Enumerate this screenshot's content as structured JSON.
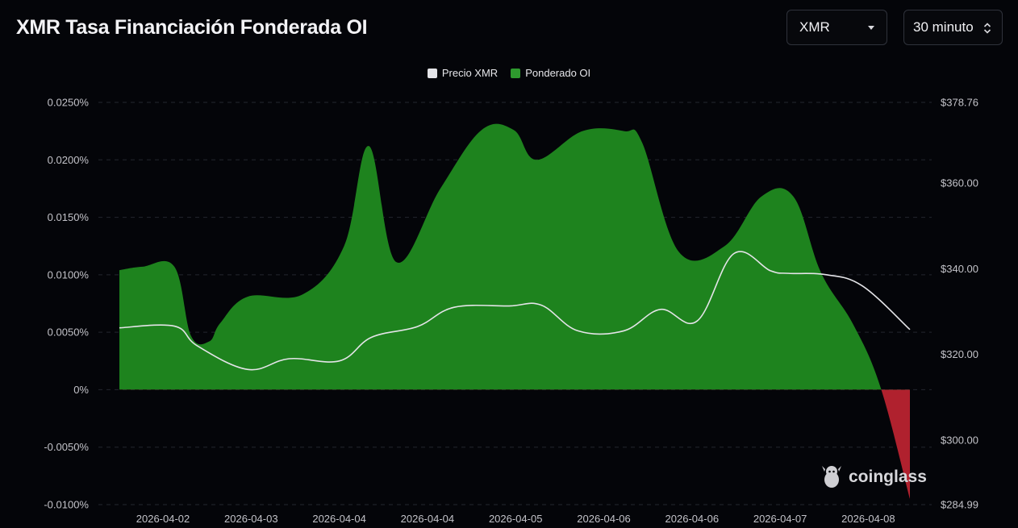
{
  "title": "XMR Tasa Financiación Fonderada OI",
  "controls": {
    "symbol": "XMR",
    "interval": "30 minuto"
  },
  "watermark": "coinglass",
  "colors": {
    "background": "#040509",
    "positive_area": "#1e831e",
    "negative_area": "#b0212e",
    "price_line": "#e4e4e8",
    "grid": "#23262e",
    "axis_text": "#c3c3c9"
  },
  "icons": {
    "symbol_dropdown": "chevron-down-icon",
    "interval_dropdown": "up-down-chevron-icon",
    "watermark_logo": "coinglass-mascot-icon"
  },
  "chart_data": {
    "type": "area",
    "title": "XMR Tasa Financiación Fonderada OI",
    "legend": [
      "Precio XMR",
      "Ponderado OI"
    ],
    "legend_position": "top-center",
    "grid": true,
    "x_ticks": [
      "2026-04-02",
      "2026-04-03",
      "2026-04-04",
      "2026-04-04",
      "2026-04-05",
      "2026-04-06",
      "2026-04-06",
      "2026-04-07",
      "2026-04-08"
    ],
    "y_left": {
      "ticks": [
        "0.0250%",
        "0.0200%",
        "0.0150%",
        "0.0100%",
        "0.0050%",
        "0%",
        "-0.0050%",
        "-0.0100%"
      ],
      "range": [
        -0.01,
        0.025
      ],
      "unit": "%"
    },
    "y_right": {
      "ticks": [
        "$378.76",
        "$360.00",
        "$340.00",
        "$320.00",
        "$300.00",
        "$284.99"
      ],
      "range": [
        284.99,
        378.76
      ],
      "unit": "$"
    },
    "series": [
      {
        "name": "Ponderado OI",
        "axis": "left",
        "x": [
          0,
          0.25,
          0.6,
          0.78,
          0.98,
          1.1,
          1.4,
          2.0,
          2.45,
          2.72,
          3.02,
          3.5,
          3.95,
          4.3,
          4.55,
          5.05,
          5.5,
          5.7,
          6.1,
          6.6,
          7.0,
          7.35,
          7.65,
          8.0,
          8.3,
          8.62
        ],
        "values": [
          0.0104,
          0.0107,
          0.0107,
          0.0047,
          0.0042,
          0.0058,
          0.0081,
          0.0083,
          0.0125,
          0.0212,
          0.0111,
          0.0175,
          0.0226,
          0.0226,
          0.02,
          0.0225,
          0.0225,
          0.0215,
          0.012,
          0.0125,
          0.0168,
          0.0168,
          0.0102,
          0.0057,
          0.0002,
          -0.0095
        ]
      },
      {
        "name": "Precio XMR",
        "axis": "right",
        "x": [
          0,
          0.6,
          0.85,
          1.4,
          1.85,
          2.4,
          2.75,
          3.25,
          3.65,
          4.25,
          4.6,
          5.0,
          5.5,
          5.9,
          6.3,
          6.7,
          7.1,
          7.3,
          7.7,
          8.1,
          8.62
        ],
        "values": [
          326.2,
          326.6,
          322.0,
          316.5,
          319.0,
          318.5,
          324.0,
          326.5,
          331.0,
          331.3,
          331.5,
          325.5,
          325.5,
          330.5,
          327.8,
          343.5,
          339.5,
          338.9,
          338.6,
          336.0,
          325.8
        ]
      }
    ]
  }
}
